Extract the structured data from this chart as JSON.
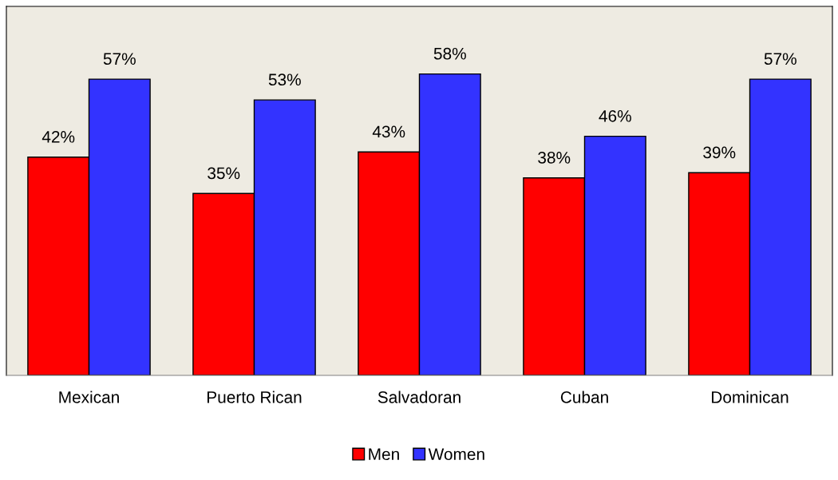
{
  "chart_data": {
    "type": "bar",
    "categories": [
      "Mexican",
      "Puerto Rican",
      "Salvadoran",
      "Cuban",
      "Dominican"
    ],
    "series": [
      {
        "name": "Men",
        "color": "#ff0000",
        "values": [
          42,
          35,
          43,
          38,
          39
        ],
        "value_labels": [
          "42%",
          "35%",
          "43%",
          "38%",
          "39%"
        ]
      },
      {
        "name": "Women",
        "color": "#3333ff",
        "values": [
          57,
          53,
          58,
          46,
          57
        ],
        "value_labels": [
          "57%",
          "53%",
          "58%",
          "46%",
          "57%"
        ]
      }
    ],
    "ylim": [
      0,
      71
    ],
    "tick_labels": "x",
    "grid": false,
    "legend": "bottom"
  }
}
